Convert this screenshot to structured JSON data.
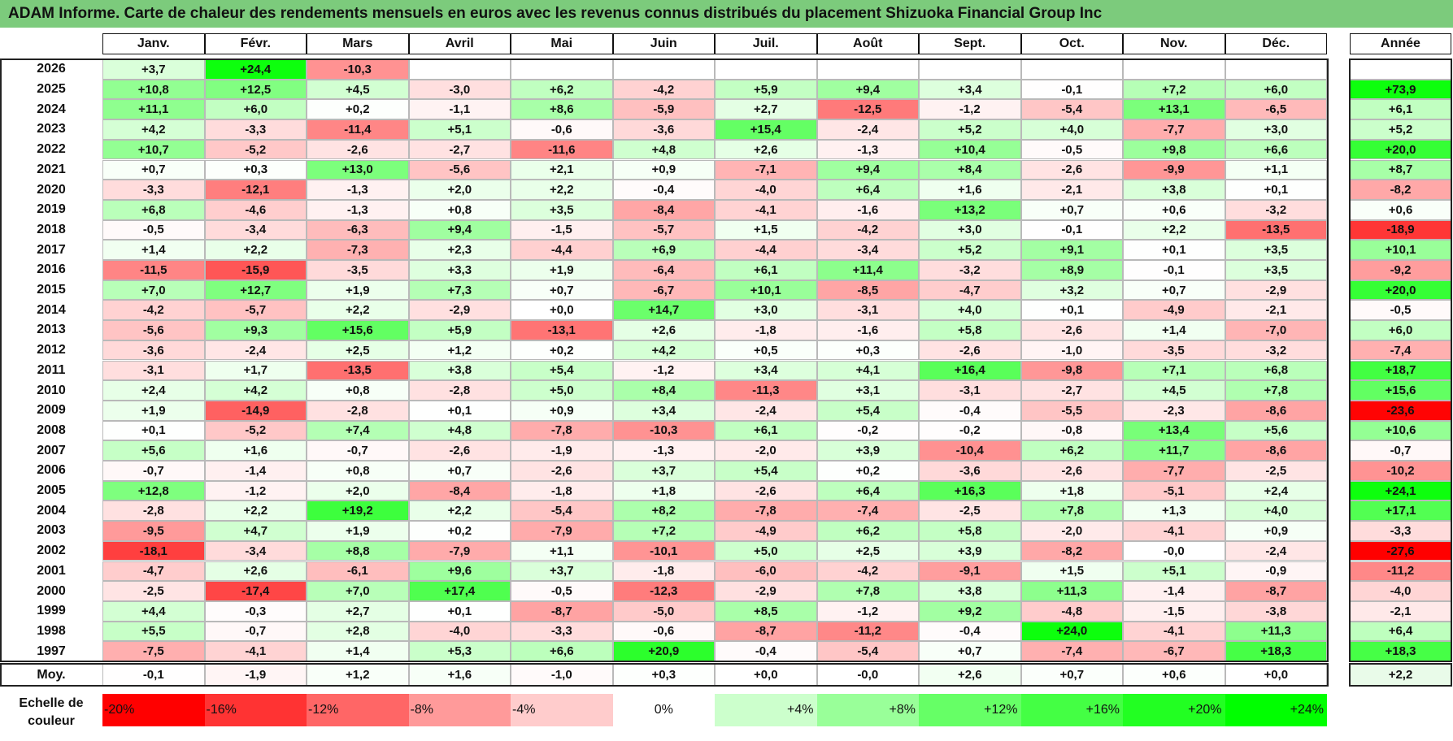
{
  "title": "ADAM Informe. Carte de chaleur des rendements mensuels en euros avec les revenus connus distribués du placement Shizuoka Financial Group Inc",
  "chart_data": {
    "type": "heatmap",
    "title": "ADAM Informe. Carte de chaleur des rendements mensuels en euros avec les revenus connus distribués du placement Shizuoka Financial Group Inc",
    "months": [
      "Janv.",
      "Févr.",
      "Mars",
      "Avril",
      "Mai",
      "Juin",
      "Juil.",
      "Août",
      "Sept.",
      "Oct.",
      "Nov.",
      "Déc."
    ],
    "year_label": "Année",
    "rows": [
      {
        "year": "2026",
        "values": [
          "+3,7",
          "+24,4",
          "-10,3",
          "",
          "",
          "",
          "",
          "",
          "",
          "",
          "",
          ""
        ],
        "annual": ""
      },
      {
        "year": "2025",
        "values": [
          "+10,8",
          "+12,5",
          "+4,5",
          "-3,0",
          "+6,2",
          "-4,2",
          "+5,9",
          "+9,4",
          "+3,4",
          "-0,1",
          "+7,2",
          "+6,0"
        ],
        "annual": "+73,9"
      },
      {
        "year": "2024",
        "values": [
          "+11,1",
          "+6,0",
          "+0,2",
          "-1,1",
          "+8,6",
          "-5,9",
          "+2,7",
          "-12,5",
          "-1,2",
          "-5,4",
          "+13,1",
          "-6,5"
        ],
        "annual": "+6,1"
      },
      {
        "year": "2023",
        "values": [
          "+4,2",
          "-3,3",
          "-11,4",
          "+5,1",
          "-0,6",
          "-3,6",
          "+15,4",
          "-2,4",
          "+5,2",
          "+4,0",
          "-7,7",
          "+3,0"
        ],
        "annual": "+5,2"
      },
      {
        "year": "2022",
        "values": [
          "+10,7",
          "-5,2",
          "-2,6",
          "-2,7",
          "-11,6",
          "+4,8",
          "+2,6",
          "-1,3",
          "+10,4",
          "-0,5",
          "+9,8",
          "+6,6"
        ],
        "annual": "+20,0"
      },
      {
        "year": "2021",
        "values": [
          "+0,7",
          "+0,3",
          "+13,0",
          "-5,6",
          "+2,1",
          "+0,9",
          "-7,1",
          "+9,4",
          "+8,4",
          "-2,6",
          "-9,9",
          "+1,1"
        ],
        "annual": "+8,7"
      },
      {
        "year": "2020",
        "values": [
          "-3,3",
          "-12,1",
          "-1,3",
          "+2,0",
          "+2,2",
          "-0,4",
          "-4,0",
          "+6,4",
          "+1,6",
          "-2,1",
          "+3,8",
          "+0,1"
        ],
        "annual": "-8,2"
      },
      {
        "year": "2019",
        "values": [
          "+6,8",
          "-4,6",
          "-1,3",
          "+0,8",
          "+3,5",
          "-8,4",
          "-4,1",
          "-1,6",
          "+13,2",
          "+0,7",
          "+0,6",
          "-3,2"
        ],
        "annual": "+0,6"
      },
      {
        "year": "2018",
        "values": [
          "-0,5",
          "-3,4",
          "-6,3",
          "+9,4",
          "-1,5",
          "-5,7",
          "+1,5",
          "-4,2",
          "+3,0",
          "-0,1",
          "+2,2",
          "-13,5"
        ],
        "annual": "-18,9"
      },
      {
        "year": "2017",
        "values": [
          "+1,4",
          "+2,2",
          "-7,3",
          "+2,3",
          "-4,4",
          "+6,9",
          "-4,4",
          "-3,4",
          "+5,2",
          "+9,1",
          "+0,1",
          "+3,5"
        ],
        "annual": "+10,1"
      },
      {
        "year": "2016",
        "values": [
          "-11,5",
          "-15,9",
          "-3,5",
          "+3,3",
          "+1,9",
          "-6,4",
          "+6,1",
          "+11,4",
          "-3,2",
          "+8,9",
          "-0,1",
          "+3,5"
        ],
        "annual": "-9,2"
      },
      {
        "year": "2015",
        "values": [
          "+7,0",
          "+12,7",
          "+1,9",
          "+7,3",
          "+0,7",
          "-6,7",
          "+10,1",
          "-8,5",
          "-4,7",
          "+3,2",
          "+0,7",
          "-2,9"
        ],
        "annual": "+20,0"
      },
      {
        "year": "2014",
        "values": [
          "-4,2",
          "-5,7",
          "+2,2",
          "-2,9",
          "+0,0",
          "+14,7",
          "+3,0",
          "-3,1",
          "+4,0",
          "+0,1",
          "-4,9",
          "-2,1"
        ],
        "annual": "-0,5"
      },
      {
        "year": "2013",
        "values": [
          "-5,6",
          "+9,3",
          "+15,6",
          "+5,9",
          "-13,1",
          "+2,6",
          "-1,8",
          "-1,6",
          "+5,8",
          "-2,6",
          "+1,4",
          "-7,0"
        ],
        "annual": "+6,0"
      },
      {
        "year": "2012",
        "values": [
          "-3,6",
          "-2,4",
          "+2,5",
          "+1,2",
          "+0,2",
          "+4,2",
          "+0,5",
          "+0,3",
          "-2,6",
          "-1,0",
          "-3,5",
          "-3,2"
        ],
        "annual": "-7,4"
      },
      {
        "year": "2011",
        "values": [
          "-3,1",
          "+1,7",
          "-13,5",
          "+3,8",
          "+5,4",
          "-1,2",
          "+3,4",
          "+4,1",
          "+16,4",
          "-9,8",
          "+7,1",
          "+6,8"
        ],
        "annual": "+18,7"
      },
      {
        "year": "2010",
        "values": [
          "+2,4",
          "+4,2",
          "+0,8",
          "-2,8",
          "+5,0",
          "+8,4",
          "-11,3",
          "+3,1",
          "-3,1",
          "-2,7",
          "+4,5",
          "+7,8"
        ],
        "annual": "+15,6"
      },
      {
        "year": "2009",
        "values": [
          "+1,9",
          "-14,9",
          "-2,8",
          "+0,1",
          "+0,9",
          "+3,4",
          "-2,4",
          "+5,4",
          "-0,4",
          "-5,5",
          "-2,3",
          "-8,6"
        ],
        "annual": "-23,6"
      },
      {
        "year": "2008",
        "values": [
          "+0,1",
          "-5,2",
          "+7,4",
          "+4,8",
          "-7,8",
          "-10,3",
          "+6,1",
          "-0,2",
          "-0,2",
          "-0,8",
          "+13,4",
          "+5,6"
        ],
        "annual": "+10,6"
      },
      {
        "year": "2007",
        "values": [
          "+5,6",
          "+1,6",
          "-0,7",
          "-2,6",
          "-1,9",
          "-1,3",
          "-2,0",
          "+3,9",
          "-10,4",
          "+6,2",
          "+11,7",
          "-8,6"
        ],
        "annual": "-0,7"
      },
      {
        "year": "2006",
        "values": [
          "-0,7",
          "-1,4",
          "+0,8",
          "+0,7",
          "-2,6",
          "+3,7",
          "+5,4",
          "+0,2",
          "-3,6",
          "-2,6",
          "-7,7",
          "-2,5"
        ],
        "annual": "-10,2"
      },
      {
        "year": "2005",
        "values": [
          "+12,8",
          "-1,2",
          "+2,0",
          "-8,4",
          "-1,8",
          "+1,8",
          "-2,6",
          "+6,4",
          "+16,3",
          "+1,8",
          "-5,1",
          "+2,4"
        ],
        "annual": "+24,1"
      },
      {
        "year": "2004",
        "values": [
          "-2,8",
          "+2,2",
          "+19,2",
          "+2,2",
          "-5,4",
          "+8,2",
          "-7,8",
          "-7,4",
          "-2,5",
          "+7,8",
          "+1,3",
          "+4,0"
        ],
        "annual": "+17,1"
      },
      {
        "year": "2003",
        "values": [
          "-9,5",
          "+4,7",
          "+1,9",
          "+0,2",
          "-7,9",
          "+7,2",
          "-4,9",
          "+6,2",
          "+5,8",
          "-2,0",
          "-4,1",
          "+0,9"
        ],
        "annual": "-3,3"
      },
      {
        "year": "2002",
        "values": [
          "-18,1",
          "-3,4",
          "+8,8",
          "-7,9",
          "+1,1",
          "-10,1",
          "+5,0",
          "+2,5",
          "+3,9",
          "-8,2",
          "-0,0",
          "-2,4"
        ],
        "annual": "-27,6"
      },
      {
        "year": "2001",
        "values": [
          "-4,7",
          "+2,6",
          "-6,1",
          "+9,6",
          "+3,7",
          "-1,8",
          "-6,0",
          "-4,2",
          "-9,1",
          "+1,5",
          "+5,1",
          "-0,9"
        ],
        "annual": "-11,2"
      },
      {
        "year": "2000",
        "values": [
          "-2,5",
          "-17,4",
          "+7,0",
          "+17,4",
          "-0,5",
          "-12,3",
          "-2,9",
          "+7,8",
          "+3,8",
          "+11,3",
          "-1,4",
          "-8,7"
        ],
        "annual": "-4,0"
      },
      {
        "year": "1999",
        "values": [
          "+4,4",
          "-0,3",
          "+2,7",
          "+0,1",
          "-8,7",
          "-5,0",
          "+8,5",
          "-1,2",
          "+9,2",
          "-4,8",
          "-1,5",
          "-3,8"
        ],
        "annual": "-2,1"
      },
      {
        "year": "1998",
        "values": [
          "+5,5",
          "-0,7",
          "+2,8",
          "-4,0",
          "-3,3",
          "-0,6",
          "-8,7",
          "-11,2",
          "-0,4",
          "+24,0",
          "-4,1",
          "+11,3"
        ],
        "annual": "+6,4"
      },
      {
        "year": "1997",
        "values": [
          "-7,5",
          "-4,1",
          "+1,4",
          "+5,3",
          "+6,6",
          "+20,9",
          "-0,4",
          "-5,4",
          "+0,7",
          "-7,4",
          "-6,7",
          "+18,3"
        ],
        "annual": "+18,3"
      }
    ],
    "average": {
      "label": "Moy.",
      "values": [
        "-0,1",
        "-1,9",
        "+1,2",
        "+1,6",
        "-1,0",
        "+0,3",
        "+0,0",
        "-0,0",
        "+2,6",
        "+0,7",
        "+0,6",
        "+0,0"
      ],
      "annual": "+2,2"
    },
    "legend": {
      "label_line1": "Echelle de",
      "label_line2": "couleur",
      "steps": [
        {
          "label": "-20%",
          "color": "#ff0000"
        },
        {
          "label": "-16%",
          "color": "#ff3333"
        },
        {
          "label": "-12%",
          "color": "#ff6666"
        },
        {
          "label": "-8%",
          "color": "#ff9a9a"
        },
        {
          "label": "-4%",
          "color": "#ffcccc"
        },
        {
          "label": "0%",
          "color": "#ffffff"
        },
        {
          "label": "+4%",
          "color": "#ccffcc"
        },
        {
          "label": "+8%",
          "color": "#99ff99"
        },
        {
          "label": "+12%",
          "color": "#66ff66"
        },
        {
          "label": "+16%",
          "color": "#44ff44"
        },
        {
          "label": "+20%",
          "color": "#22ff22"
        },
        {
          "label": "+24%",
          "color": "#00ff00"
        }
      ]
    }
  }
}
